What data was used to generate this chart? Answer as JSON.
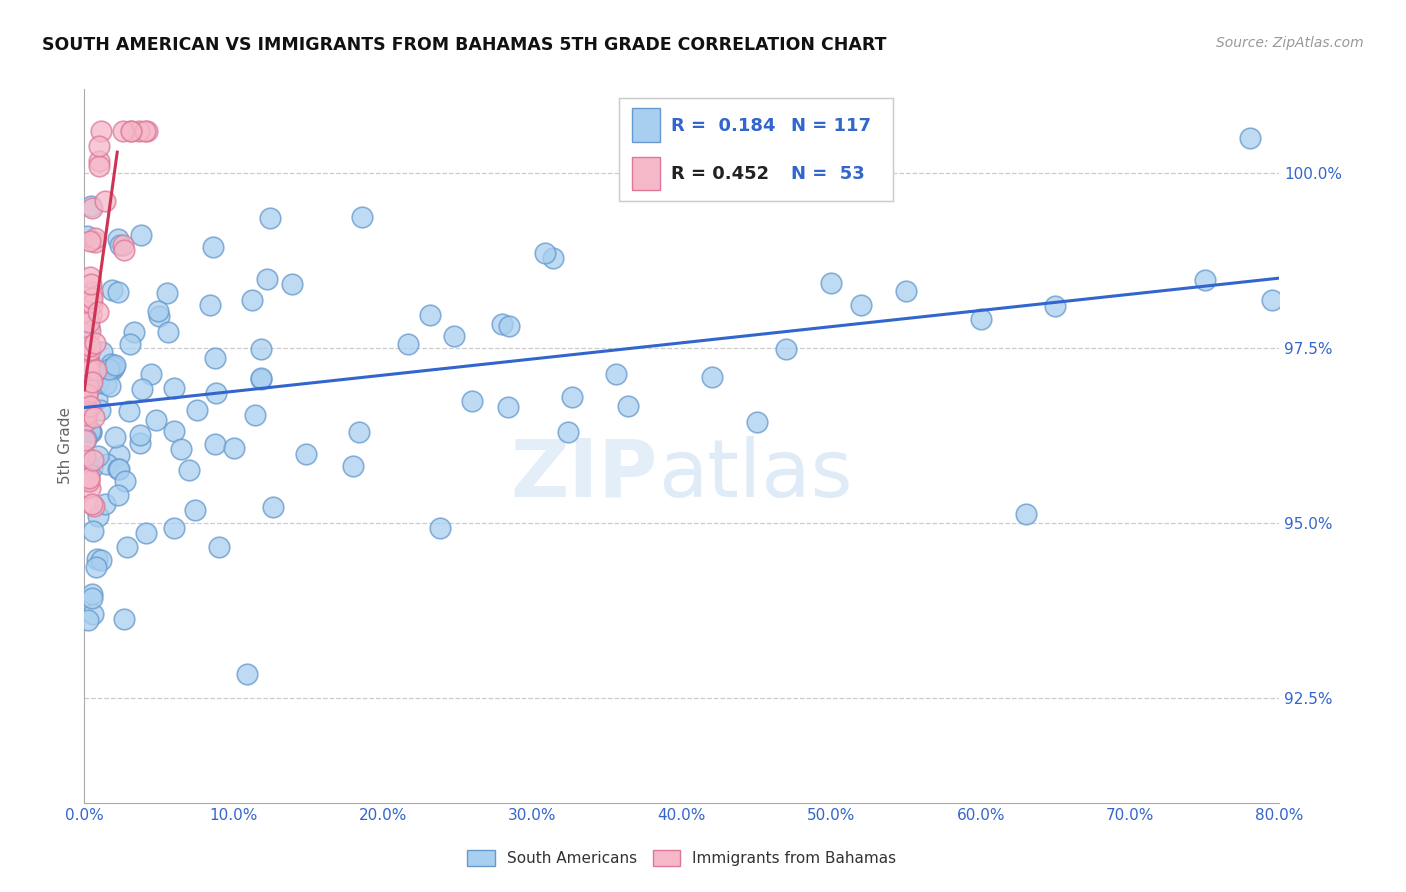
{
  "title": "SOUTH AMERICAN VS IMMIGRANTS FROM BAHAMAS 5TH GRADE CORRELATION CHART",
  "source": "Source: ZipAtlas.com",
  "ylabel": "5th Grade",
  "xlim": [
    0.0,
    80.0
  ],
  "ylim": [
    91.0,
    101.2
  ],
  "xticks": [
    0.0,
    10.0,
    20.0,
    30.0,
    40.0,
    50.0,
    60.0,
    70.0,
    80.0
  ],
  "xticklabels": [
    "0.0%",
    "10.0%",
    "20.0%",
    "30.0%",
    "40.0%",
    "50.0%",
    "60.0%",
    "70.0%",
    "80.0%"
  ],
  "yticks": [
    92.5,
    95.0,
    97.5,
    100.0
  ],
  "yticklabels": [
    "92.5%",
    "95.0%",
    "97.5%",
    "100.0%"
  ],
  "blue_color": "#a8cff0",
  "pink_color": "#f5b8c8",
  "blue_edge": "#6699cc",
  "pink_edge": "#dd7799",
  "trend_blue": "#3366cc",
  "trend_pink": "#cc3355",
  "R_blue": 0.184,
  "N_blue": 117,
  "R_pink": 0.452,
  "N_pink": 53,
  "blue_line_x0": 0.0,
  "blue_line_y0": 96.65,
  "blue_line_x1": 80.0,
  "blue_line_y1": 98.5,
  "pink_line_x0": 0.0,
  "pink_line_y0": 96.9,
  "pink_line_x1": 2.2,
  "pink_line_y1": 100.3,
  "watermark_zip": "ZIP",
  "watermark_atlas": "atlas",
  "legend_blue": "South Americans",
  "legend_pink": "Immigrants from Bahamas",
  "grid_color": "#cccccc",
  "tick_color": "#3366cc",
  "title_color": "#111111",
  "source_color": "#999999",
  "ylabel_color": "#666666",
  "scatter_size": 220,
  "scatter_alpha": 0.75,
  "scatter_lw": 1.2
}
